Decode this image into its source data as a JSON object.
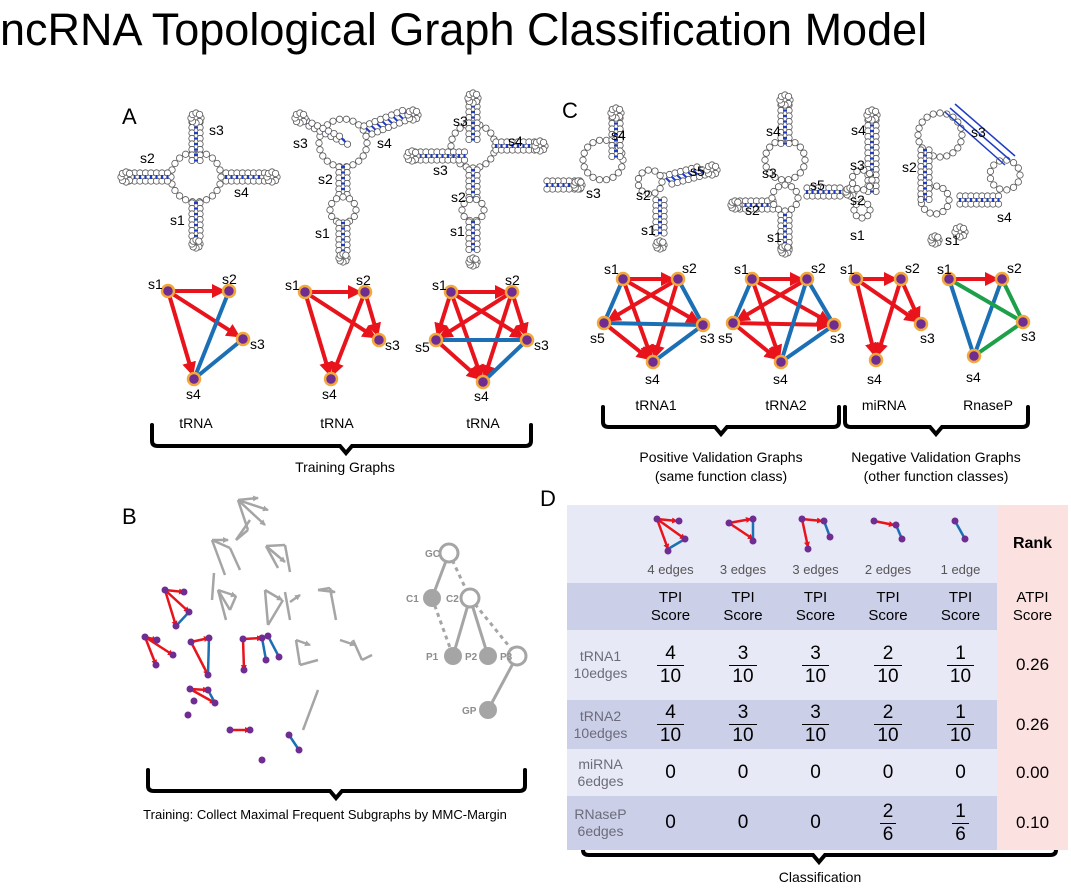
{
  "title": "ncRNA Topological Graph Classification Model",
  "panels": {
    "A": {
      "letter": "A",
      "graph_labels": [
        "tRNA",
        "tRNA",
        "tRNA"
      ],
      "bracket_label": "Training Graphs"
    },
    "B": {
      "letter": "B",
      "lattice_nodes": [
        "GC",
        "C1",
        "C2",
        "P1",
        "P2",
        "P3",
        "GP"
      ],
      "bracket_label": "Training: Collect Maximal Frequent Subgraphs by MMC-Margin"
    },
    "C": {
      "letter": "C",
      "graph_labels": [
        "tRNA1",
        "tRNA2",
        "miRNA",
        "RnaseP"
      ],
      "positive_label_line1": "Positive Validation Graphs",
      "positive_label_line2": "(same function class)",
      "negative_label_line1": "Negative Validation Graphs",
      "negative_label_line2": "(other function classes)"
    },
    "D": {
      "letter": "D",
      "edge_captions": [
        "4 edges",
        "3 edges",
        "3 edges",
        "2 edges",
        "1 edge"
      ],
      "rank_header": "Rank",
      "tpi_header_line1": "TPI",
      "tpi_header_line2": "Score",
      "atpi_header_line1": "ATPI",
      "atpi_header_line2": "Score",
      "rows": [
        {
          "name_line1": "tRNA1",
          "name_line2": "10edges",
          "cells": [
            [
              "4",
              "10"
            ],
            [
              "3",
              "10"
            ],
            [
              "3",
              "10"
            ],
            [
              "2",
              "10"
            ],
            [
              "1",
              "10"
            ]
          ],
          "score": "0.26"
        },
        {
          "name_line1": "tRNA2",
          "name_line2": "10edges",
          "cells": [
            [
              "4",
              "10"
            ],
            [
              "3",
              "10"
            ],
            [
              "3",
              "10"
            ],
            [
              "2",
              "10"
            ],
            [
              "1",
              "10"
            ]
          ],
          "score": "0.26"
        },
        {
          "name_line1": "miRNA",
          "name_line2": "6edges",
          "cells": [
            "0",
            "0",
            "0",
            "0",
            "0"
          ],
          "score": "0.00"
        },
        {
          "name_line1": "RNaseP",
          "name_line2": "6edges",
          "cells": [
            "0",
            "0",
            "0",
            [
              "2",
              "6"
            ],
            [
              "1",
              "6"
            ]
          ],
          "score": "0.10"
        }
      ],
      "bracket_label": "Classification"
    }
  },
  "node_labels": {
    "s1": "s1",
    "s2": "s2",
    "s3": "s3",
    "s4": "s4",
    "s5": "s5"
  },
  "colors": {
    "red_edge": "#e8131b",
    "blue_edge": "#1b6fb5",
    "green_edge": "#1ea04a",
    "node_fill": "#6f2c91",
    "node_ring": "#f2a83b",
    "gray": "#a5a5a5",
    "table_light": "#e8e9f6",
    "table_dark": "#cbcfe8",
    "rank_pink": "#fce1e1"
  }
}
